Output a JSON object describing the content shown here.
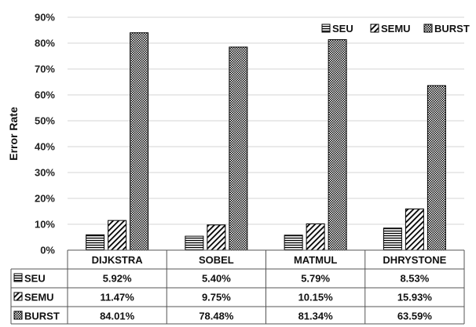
{
  "chart_data": {
    "type": "bar",
    "ylabel": "Error Rate",
    "ylim": [
      0,
      90
    ],
    "yticks": [
      "0%",
      "10%",
      "20%",
      "30%",
      "40%",
      "50%",
      "60%",
      "70%",
      "80%",
      "90%"
    ],
    "categories": [
      "DIJKSTRA",
      "SOBEL",
      "MATMUL",
      "DHRYSTONE"
    ],
    "series": [
      {
        "name": "SEU",
        "pattern": "hlines",
        "values": [
          5.92,
          5.4,
          5.79,
          8.53
        ],
        "labels": [
          "5.92%",
          "5.40%",
          "5.79%",
          "8.53%"
        ]
      },
      {
        "name": "SEMU",
        "pattern": "diagonal",
        "values": [
          11.47,
          9.75,
          10.15,
          15.93
        ],
        "labels": [
          "11.47%",
          "9.75%",
          "10.15%",
          "15.93%"
        ]
      },
      {
        "name": "BURST",
        "pattern": "checker",
        "values": [
          84.01,
          78.48,
          81.34,
          63.59
        ],
        "labels": [
          "84.01%",
          "78.48%",
          "81.34%",
          "63.59%"
        ]
      }
    ],
    "legend_position": "top-right",
    "grid": true,
    "data_table": true
  }
}
